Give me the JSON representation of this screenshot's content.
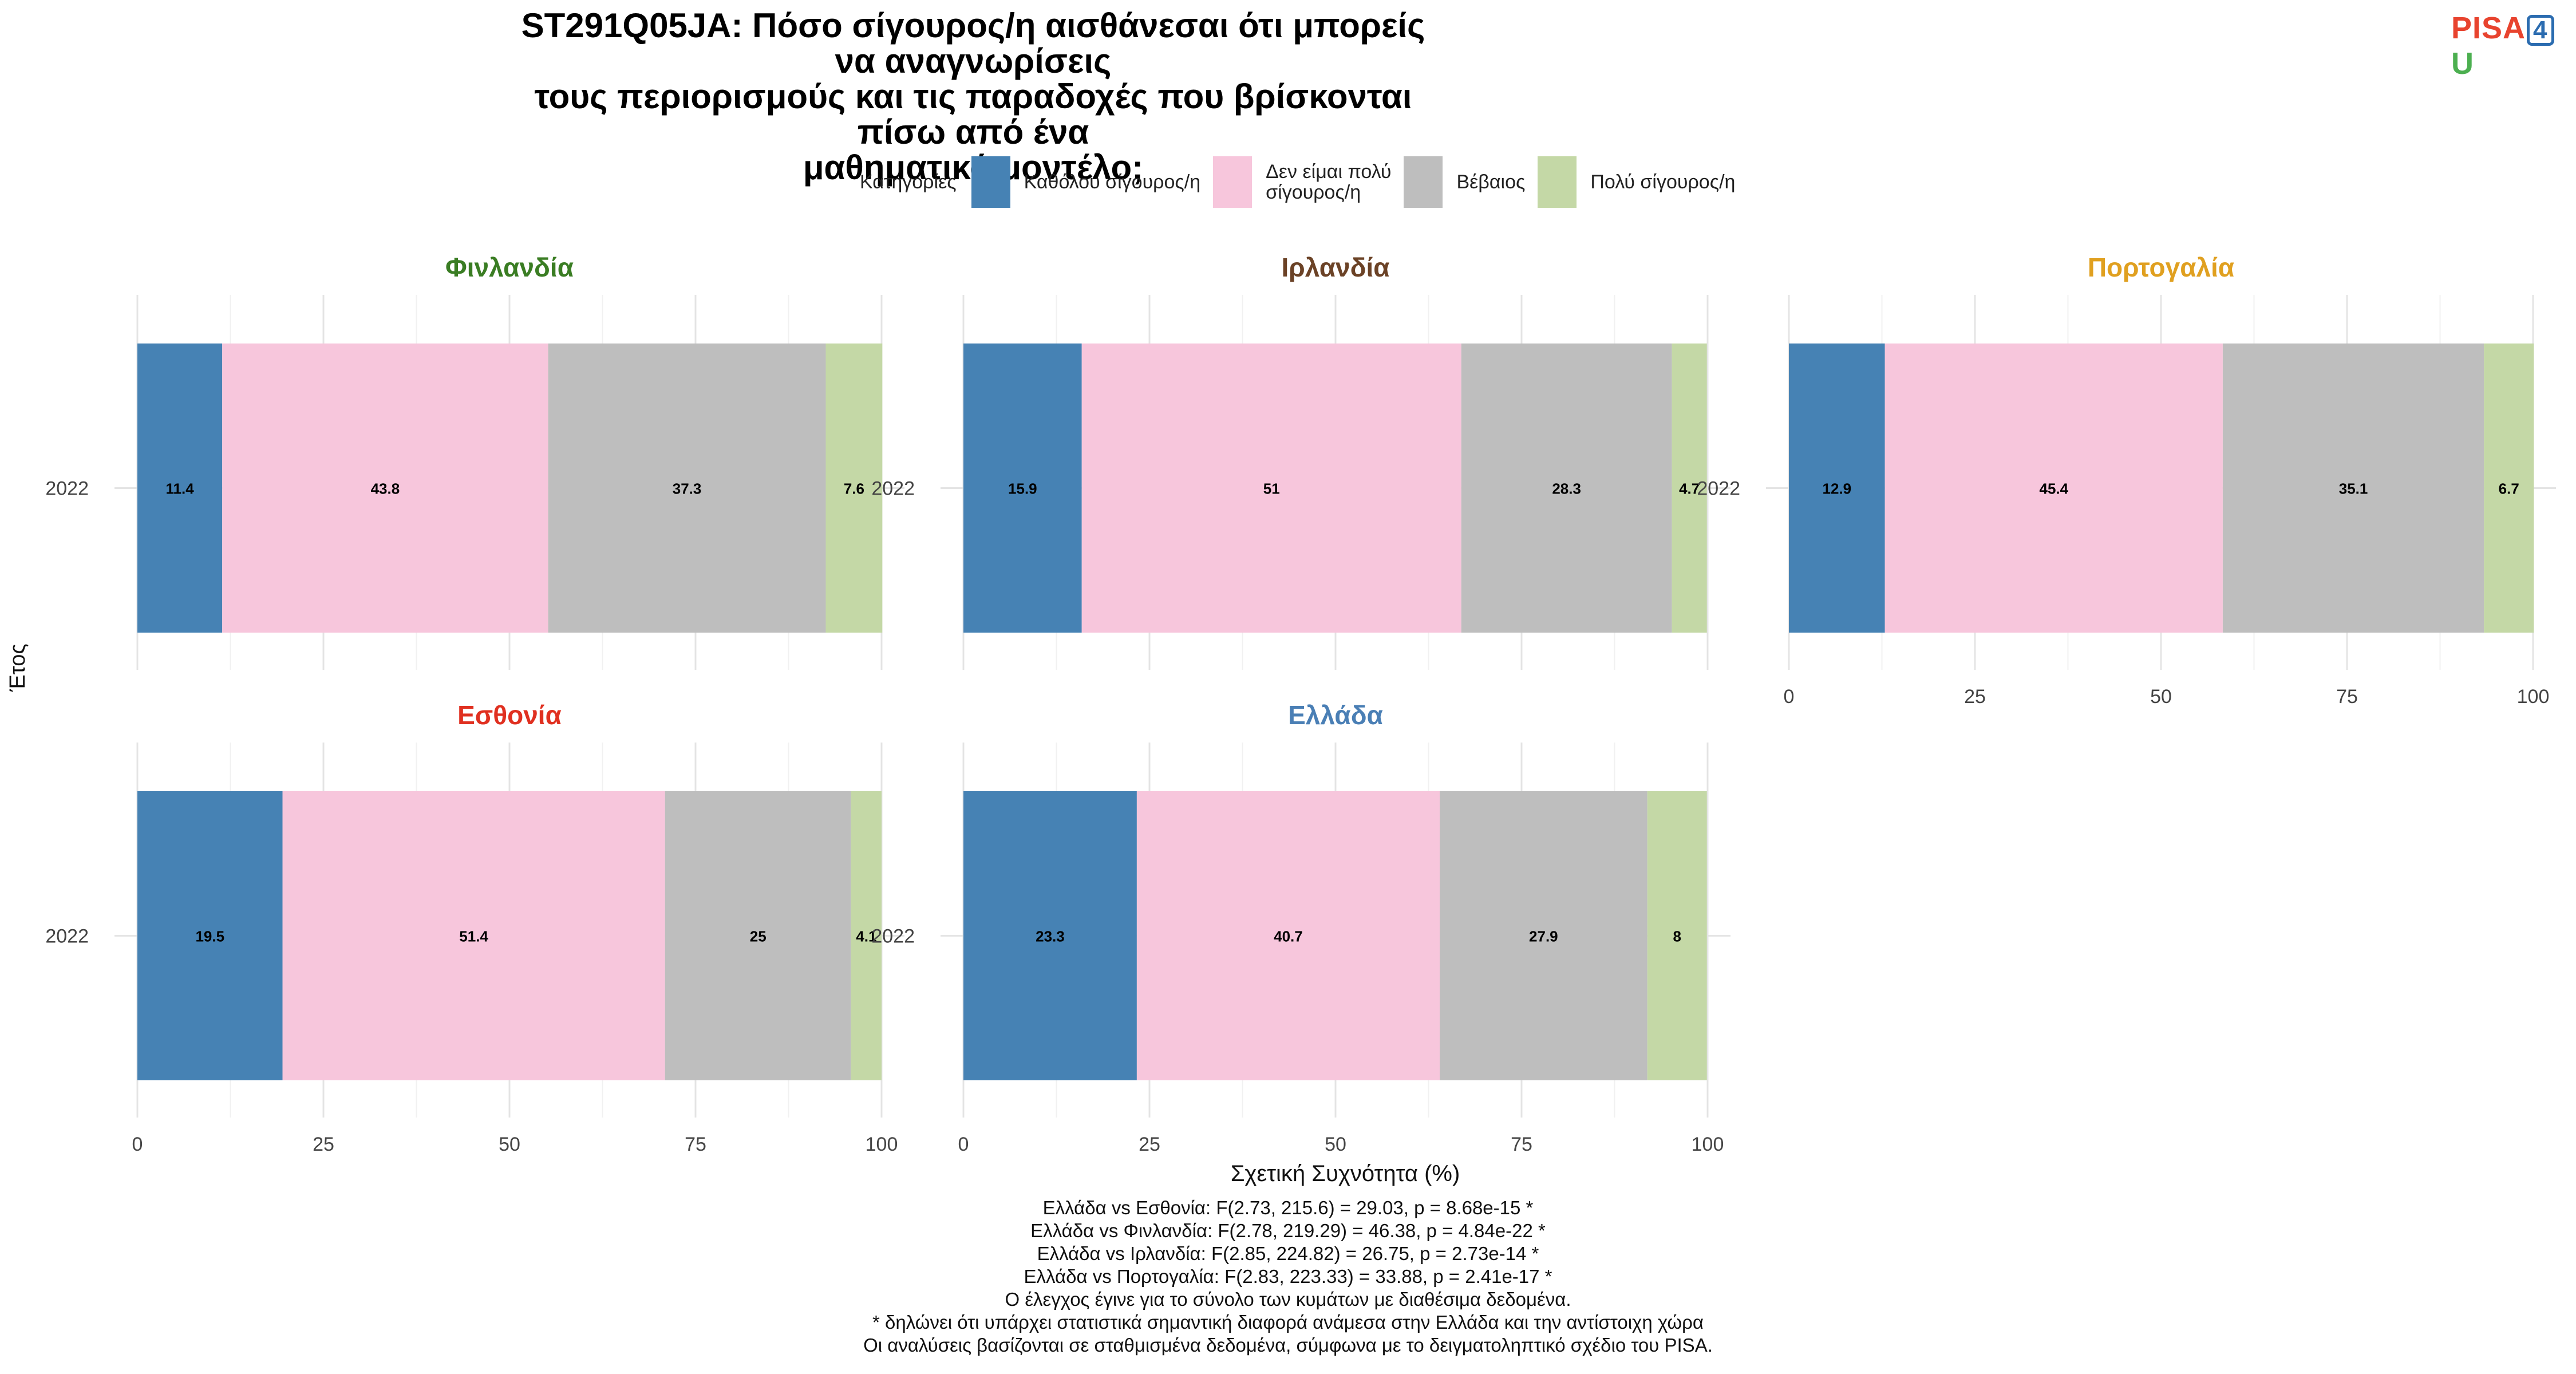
{
  "title_lines": [
    "ST291Q05JA: Πόσο σίγουρος/η αισθάνεσαι ότι μπορείς να αναγνωρίσεις",
    "τους περιορισμούς και τις παραδοχές που βρίσκονται πίσω από ένα",
    "μαθηματικό μοντέλο;"
  ],
  "logo": {
    "pisa": "PISA",
    "four": "4",
    "u": "U"
  },
  "legend": {
    "title": "Κατηγορίες",
    "items": [
      {
        "label": "Καθόλου σίγουρος/η",
        "color": "#4682b4"
      },
      {
        "label": "Δεν είμαι πολύ\nσίγουρος/η",
        "color": "#f7c6dc"
      },
      {
        "label": "Βέβαιος",
        "color": "#bebebe"
      },
      {
        "label": "Πολύ σίγουρος/η",
        "color": "#c4d8a6"
      }
    ]
  },
  "ylabel": "Έτος",
  "xlabel": "Σχετική Συχνότητα (%)",
  "footer_lines": [
    "Ελλάδα vs Εσθονία: F(2.73, 215.6) = 29.03, p = 8.68e-15 *",
    "Ελλάδα vs Φινλανδία: F(2.78, 219.29) = 46.38, p = 4.84e-22 *",
    "Ελλάδα vs Ιρλανδία: F(2.85, 224.82) = 26.75, p = 2.73e-14 *",
    "Ελλάδα vs Πορτογαλία: F(2.83, 223.33) = 33.88, p = 2.41e-17 *",
    "Ο έλεγχος έγινε για το σύνολο των κυμάτων με διαθέσιμα δεδομένα.",
    "* δηλώνει ότι υπάρχει στατιστικά σημαντική διαφορά ανάμεσα στην Ελλάδα και την αντίστοιχη χώρα",
    "Οι αναλύσεις βασίζονται σε σταθμισμένα δεδομένα, σύμφωνα με το δειγματοληπτικό σχέδιο του PISA."
  ],
  "chart_data": {
    "type": "bar",
    "orientation": "horizontal",
    "stacked": true,
    "xlim": [
      0,
      100
    ],
    "xticks": [
      0,
      25,
      50,
      75,
      100
    ],
    "categories": [
      "Καθόλου σίγουρος/η",
      "Δεν είμαι πολύ σίγουρος/η",
      "Βέβαιος",
      "Πολύ σίγουρος/η"
    ],
    "grid": true,
    "legend_position": "top",
    "panels": [
      {
        "title": "Φινλανδία",
        "title_color": "#3a7d23",
        "year": "2022",
        "values": [
          11.4,
          43.8,
          37.3,
          7.6
        ],
        "labels": [
          "11.4",
          "43.8",
          "37.3",
          "7.6"
        ]
      },
      {
        "title": "Ιρλανδία",
        "title_color": "#6b4226",
        "year": "2022",
        "values": [
          15.9,
          51,
          28.3,
          4.7
        ],
        "labels": [
          "15.9",
          "51",
          "28.3",
          "4.7"
        ]
      },
      {
        "title": "Πορτογαλία",
        "title_color": "#e0a020",
        "year": "2022",
        "values": [
          12.9,
          45.4,
          35.1,
          6.7
        ],
        "labels": [
          "12.9",
          "45.4",
          "35.1",
          "6.7"
        ]
      },
      {
        "title": "Εσθονία",
        "title_color": "#e03020",
        "year": "2022",
        "values": [
          19.5,
          51.4,
          25,
          4.1
        ],
        "labels": [
          "19.5",
          "51.4",
          "25",
          "4.1"
        ]
      },
      {
        "title": "Ελλάδα",
        "title_color": "#4a7fb5",
        "year": "2022",
        "values": [
          23.3,
          40.7,
          27.9,
          8
        ],
        "labels": [
          "23.3",
          "40.7",
          "27.9",
          "8"
        ]
      }
    ]
  }
}
